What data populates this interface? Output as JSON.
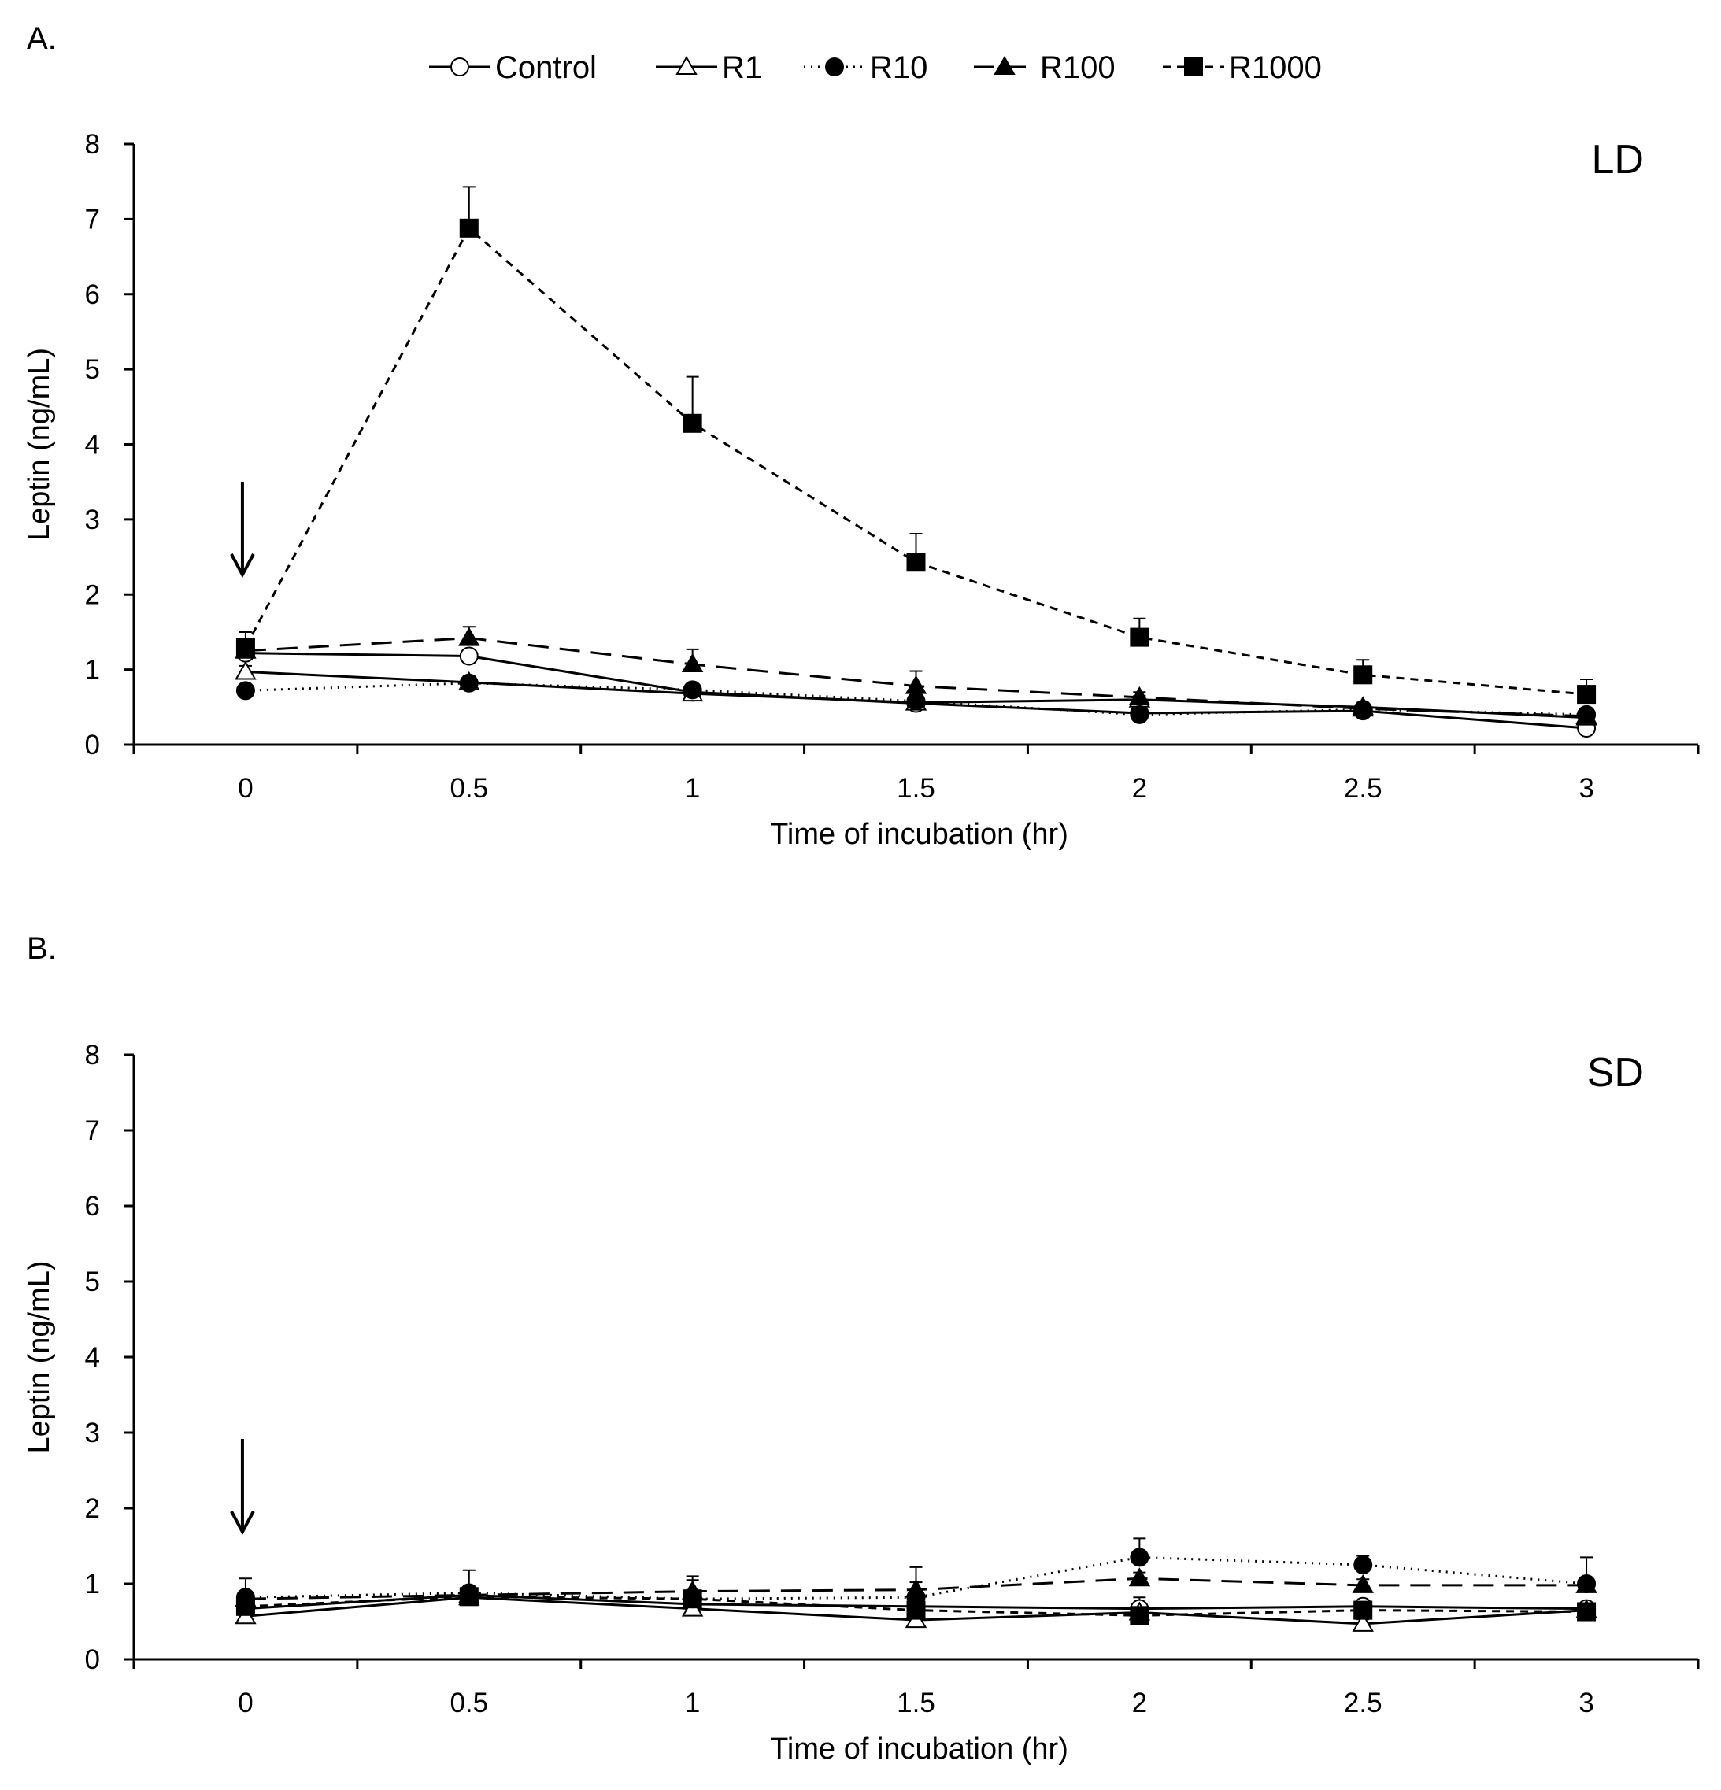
{
  "chart_data": [
    {
      "type": "line",
      "panel_label": "A.",
      "condition": "LD",
      "xlabel": "Time of incubation (hr)",
      "ylabel": "Leptin (ng/mL)",
      "x": [
        0,
        0.5,
        1,
        1.5,
        2,
        2.5,
        3
      ],
      "x_tick_labels": [
        "0",
        "0.5",
        "1",
        "1.5",
        "2",
        "2.5",
        "3"
      ],
      "y_tick_labels": [
        "0",
        "1",
        "2",
        "3",
        "4",
        "5",
        "6",
        "7",
        "8"
      ],
      "xlim": [
        -0.25,
        3.25
      ],
      "ylim": [
        0,
        8
      ],
      "annotation": "downward arrow at time 0 (treatment)",
      "series": [
        {
          "name": "Control",
          "values": [
            1.22,
            1.18,
            0.7,
            0.55,
            0.42,
            0.45,
            0.22
          ],
          "errors": [
            0.1,
            0.08,
            0.06,
            0.05,
            0.05,
            0.05,
            0.04
          ]
        },
        {
          "name": "R1",
          "values": [
            0.97,
            0.83,
            0.68,
            0.56,
            0.6,
            0.5,
            0.36
          ],
          "errors": [
            0.08,
            0.07,
            0.06,
            0.05,
            0.05,
            0.06,
            0.05
          ]
        },
        {
          "name": "R10",
          "values": [
            0.72,
            0.82,
            0.73,
            0.58,
            0.4,
            0.47,
            0.4
          ],
          "errors": [
            0.06,
            0.1,
            0.08,
            0.07,
            0.06,
            0.06,
            0.05
          ]
        },
        {
          "name": "R100",
          "values": [
            1.25,
            1.42,
            1.07,
            0.78,
            0.63,
            0.48,
            0.38
          ],
          "errors": [
            0.15,
            0.15,
            0.2,
            0.2,
            0.07,
            0.06,
            0.06
          ]
        },
        {
          "name": "R1000",
          "values": [
            1.3,
            6.88,
            4.28,
            2.43,
            1.43,
            0.93,
            0.67
          ],
          "errors": [
            0.2,
            0.55,
            0.62,
            0.38,
            0.25,
            0.2,
            0.2
          ]
        }
      ]
    },
    {
      "type": "line",
      "panel_label": "B.",
      "condition": "SD",
      "xlabel": "Time of incubation (hr)",
      "ylabel": "Leptin (ng/mL)",
      "x": [
        0,
        0.5,
        1,
        1.5,
        2,
        2.5,
        3
      ],
      "x_tick_labels": [
        "0",
        "0.5",
        "1",
        "1.5",
        "2",
        "2.5",
        "3"
      ],
      "y_tick_labels": [
        "0",
        "1",
        "2",
        "3",
        "4",
        "5",
        "6",
        "7",
        "8"
      ],
      "xlim": [
        -0.25,
        3.25
      ],
      "ylim": [
        0,
        8
      ],
      "annotation": "downward arrow at time 0 (treatment)",
      "series": [
        {
          "name": "Control",
          "values": [
            0.67,
            0.85,
            0.73,
            0.7,
            0.67,
            0.7,
            0.67
          ],
          "errors": [
            0.08,
            0.08,
            0.08,
            0.08,
            0.15,
            0.08,
            0.06
          ]
        },
        {
          "name": "R1",
          "values": [
            0.57,
            0.82,
            0.67,
            0.52,
            0.62,
            0.47,
            0.65
          ],
          "errors": [
            0.06,
            0.07,
            0.07,
            0.06,
            0.06,
            0.06,
            0.06
          ]
        },
        {
          "name": "R10",
          "values": [
            0.82,
            0.88,
            0.8,
            0.82,
            1.35,
            1.25,
            1.0
          ],
          "errors": [
            0.25,
            0.3,
            0.3,
            0.4,
            0.25,
            0.12,
            0.35
          ]
        },
        {
          "name": "R100",
          "values": [
            0.8,
            0.85,
            0.9,
            0.92,
            1.07,
            0.98,
            0.98
          ],
          "errors": [
            0.1,
            0.1,
            0.15,
            0.1,
            0.08,
            0.08,
            0.08
          ]
        },
        {
          "name": "R1000",
          "values": [
            0.7,
            0.83,
            0.8,
            0.65,
            0.58,
            0.65,
            0.63
          ],
          "errors": [
            0.08,
            0.08,
            0.1,
            0.08,
            0.06,
            0.06,
            0.06
          ]
        }
      ]
    }
  ],
  "legend": [
    {
      "name": "Control",
      "label": "Control"
    },
    {
      "name": "R1",
      "label": "R1"
    },
    {
      "name": "R10",
      "label": "R10"
    },
    {
      "name": "R100",
      "label": "R100"
    },
    {
      "name": "R1000",
      "label": "R1000"
    }
  ],
  "colors": {
    "ink": "#000000",
    "background": "#ffffff"
  }
}
